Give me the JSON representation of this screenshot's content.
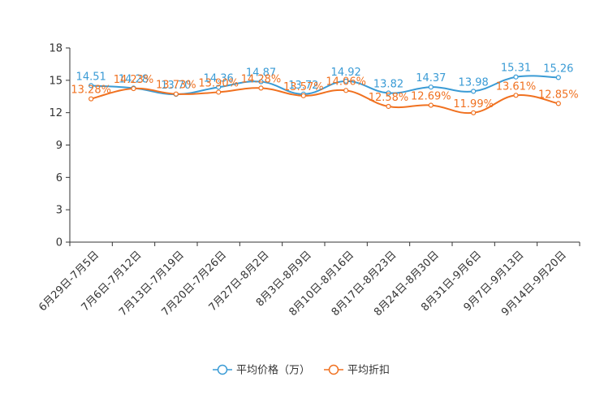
{
  "chart_data": {
    "type": "line",
    "categories": [
      "6月29日-7月5日",
      "7月6日-7月12日",
      "7月13日-7月19日",
      "7月20日-7月26日",
      "7月27日-8月2日",
      "8月3日-8月9日",
      "8月10日-8月16日",
      "8月17日-8月23日",
      "8月24日-8月30日",
      "8月31日-9月6日",
      "9月7日-9月13日",
      "9月14日-9月20日"
    ],
    "series": [
      {
        "name": "平均价格（万）",
        "color": "#3a9bd5",
        "values": [
          14.51,
          14.28,
          13.7,
          14.36,
          14.87,
          13.72,
          14.92,
          13.82,
          14.37,
          13.98,
          15.31,
          15.26
        ],
        "labels": [
          "14.51",
          "14.28",
          "13.70",
          "14.36",
          "14.87",
          "13.72",
          "14.92",
          "13.82",
          "14.37",
          "13.98",
          "15.31",
          "15.26"
        ]
      },
      {
        "name": "平均折扣",
        "color": "#f07120",
        "values": [
          13.28,
          14.23,
          13.73,
          13.9,
          14.28,
          13.57,
          14.06,
          12.58,
          12.69,
          11.99,
          13.61,
          12.85
        ],
        "labels": [
          "13.28%",
          "14.23%",
          "13.73%",
          "13.90%",
          "14.28%",
          "13.57%",
          "14.06%",
          "12.58%",
          "12.69%",
          "11.99%",
          "13.61%",
          "12.85%"
        ]
      }
    ],
    "ylim": [
      0,
      18
    ],
    "yticks": [
      0,
      3,
      6,
      9,
      12,
      15,
      18
    ],
    "xlabel": "",
    "ylabel": "",
    "legend_position": "bottom-center",
    "grid": false
  }
}
